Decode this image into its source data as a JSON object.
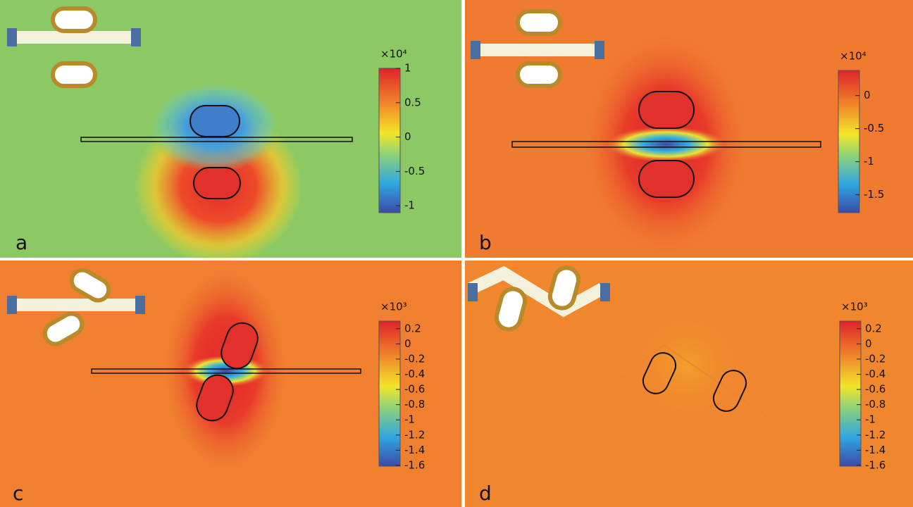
{
  "chart_data": [
    {
      "type": "heatmap",
      "panel_label": "a",
      "colorbar_scale": "×10⁴",
      "clim": [
        -1.1,
        1.0
      ],
      "cticks": [
        1,
        0.5,
        0,
        -0.5,
        -1
      ]
    },
    {
      "type": "heatmap",
      "panel_label": "b",
      "colorbar_scale": "×10⁴",
      "clim": [
        -1.77,
        0.38
      ],
      "cticks": [
        0,
        -0.5,
        -1,
        -1.5
      ]
    },
    {
      "type": "heatmap",
      "panel_label": "c",
      "colorbar_scale": "×10³",
      "clim": [
        -1.61,
        0.3
      ],
      "cticks": [
        0.2,
        0,
        -0.2,
        -0.4,
        -0.6,
        -0.8,
        -1,
        -1.2,
        -1.4,
        -1.6
      ]
    },
    {
      "type": "heatmap",
      "panel_label": "d",
      "colorbar_scale": "×10³",
      "clim": [
        -1.61,
        0.3
      ],
      "cticks": [
        0.2,
        0,
        -0.2,
        -0.4,
        -0.6,
        -0.8,
        -1,
        -1.2,
        -1.4,
        -1.6
      ]
    }
  ]
}
